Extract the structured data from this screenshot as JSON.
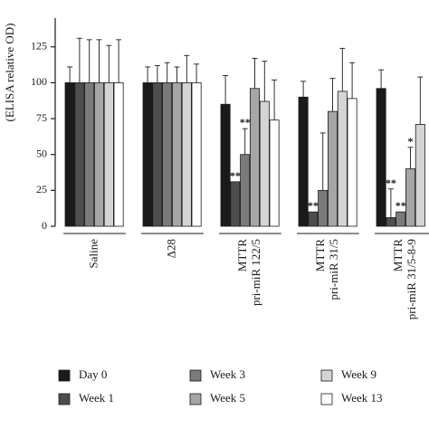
{
  "chart_data": {
    "type": "bar",
    "ylabel": "(ELISA relative OD)",
    "ylim": [
      0,
      140
    ],
    "yticks": [
      0,
      25,
      50,
      75,
      100,
      125
    ],
    "grid": false,
    "legend_position": "bottom",
    "groups": [
      {
        "label_lines": [
          "Saline"
        ]
      },
      {
        "label_lines": [
          "Δ28"
        ]
      },
      {
        "label_lines": [
          "MTTR",
          "pri-miR 122/5"
        ]
      },
      {
        "label_lines": [
          "MTTR",
          "pri-miR 31/5"
        ]
      },
      {
        "label_lines": [
          "MTTR",
          "pri-miR 31/5-8-9"
        ]
      }
    ],
    "series": [
      {
        "name": "Day 0",
        "color": "#1a1a1a",
        "values": [
          100,
          100,
          85,
          90,
          96
        ],
        "errors": [
          11,
          11,
          20,
          11,
          13
        ],
        "stars": [
          "",
          "",
          "",
          "",
          ""
        ]
      },
      {
        "name": "Week 1",
        "color": "#4d4d4d",
        "values": [
          100,
          100,
          31,
          10,
          6
        ],
        "errors": [
          31,
          12,
          0,
          0,
          20
        ],
        "stars": [
          "",
          "",
          "**",
          "**",
          "**"
        ]
      },
      {
        "name": "Week 3",
        "color": "#7a7a7a",
        "values": [
          100,
          100,
          50,
          25,
          10
        ],
        "errors": [
          30,
          14,
          18,
          40,
          0
        ],
        "stars": [
          "",
          "",
          "**",
          "",
          "**"
        ]
      },
      {
        "name": "Week 5",
        "color": "#a6a6a6",
        "values": [
          100,
          100,
          96,
          80,
          40
        ],
        "errors": [
          30,
          11,
          21,
          23,
          15
        ],
        "stars": [
          "",
          "",
          "",
          "",
          "*"
        ]
      },
      {
        "name": "Week 9",
        "color": "#d4d4d4",
        "values": [
          100,
          100,
          87,
          94,
          71
        ],
        "errors": [
          26,
          19,
          28,
          30,
          33
        ],
        "stars": [
          "",
          "",
          "",
          "",
          ""
        ]
      },
      {
        "name": "Week 13",
        "color": "#ffffff",
        "values": [
          100,
          100,
          74,
          89,
          0
        ],
        "errors": [
          30,
          13,
          28,
          25,
          0
        ],
        "stars": [
          "",
          "",
          "",
          "",
          ""
        ]
      }
    ]
  }
}
